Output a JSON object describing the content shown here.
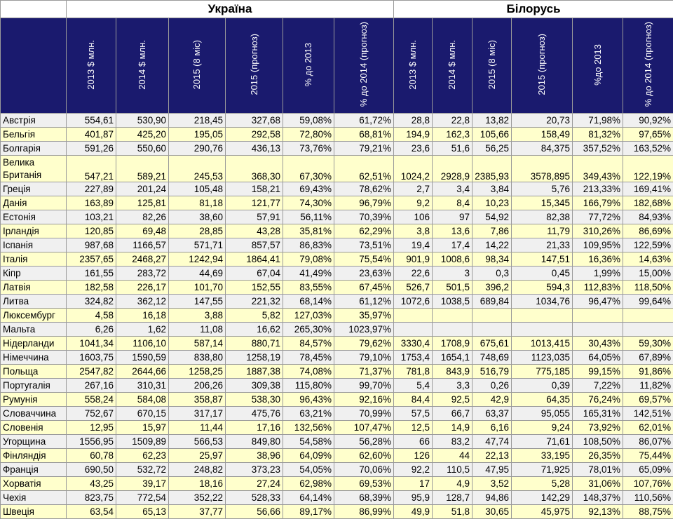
{
  "groups": {
    "ukraine": "Україна",
    "belarus": "Білорусь"
  },
  "columns": [
    "2013 $ млн.",
    "2014 $ млн.",
    "2015 (8 міс)",
    "2015 (прогноз)",
    "% до 2013",
    "% до 2014 (прогноз)",
    "2013 $ млн.",
    "2014 $ млн.",
    "2015 (8 міс)",
    "2015 (прогноз)",
    "%до 2013",
    "% до 2014 (прогноз)"
  ],
  "rows": [
    [
      "Австрія",
      "554,61",
      "530,90",
      "218,45",
      "327,68",
      "59,08%",
      "61,72%",
      "28,8",
      "22,8",
      "13,82",
      "20,73",
      "71,98%",
      "90,92%"
    ],
    [
      "Бельгія",
      "401,87",
      "425,20",
      "195,05",
      "292,58",
      "72,80%",
      "68,81%",
      "194,9",
      "162,3",
      "105,66",
      "158,49",
      "81,32%",
      "97,65%"
    ],
    [
      "Болгарія",
      "591,26",
      "550,60",
      "290,76",
      "436,13",
      "73,76%",
      "79,21%",
      "23,6",
      "51,6",
      "56,25",
      "84,375",
      "357,52%",
      "163,52%"
    ],
    [
      "Велика Британія",
      "547,21",
      "589,21",
      "245,53",
      "368,30",
      "67,30%",
      "62,51%",
      "1024,2",
      "2928,9",
      "2385,93",
      "3578,895",
      "349,43%",
      "122,19%"
    ],
    [
      "Греція",
      "227,89",
      "201,24",
      "105,48",
      "158,21",
      "69,43%",
      "78,62%",
      "2,7",
      "3,4",
      "3,84",
      "5,76",
      "213,33%",
      "169,41%"
    ],
    [
      "Данія",
      "163,89",
      "125,81",
      "81,18",
      "121,77",
      "74,30%",
      "96,79%",
      "9,2",
      "8,4",
      "10,23",
      "15,345",
      "166,79%",
      "182,68%"
    ],
    [
      "Естонія",
      "103,21",
      "82,26",
      "38,60",
      "57,91",
      "56,11%",
      "70,39%",
      "106",
      "97",
      "54,92",
      "82,38",
      "77,72%",
      "84,93%"
    ],
    [
      "Ірландія",
      "120,85",
      "69,48",
      "28,85",
      "43,28",
      "35,81%",
      "62,29%",
      "3,8",
      "13,6",
      "7,86",
      "11,79",
      "310,26%",
      "86,69%"
    ],
    [
      "Іспанія",
      "987,68",
      "1166,57",
      "571,71",
      "857,57",
      "86,83%",
      "73,51%",
      "19,4",
      "17,4",
      "14,22",
      "21,33",
      "109,95%",
      "122,59%"
    ],
    [
      "Італія",
      "2357,65",
      "2468,27",
      "1242,94",
      "1864,41",
      "79,08%",
      "75,54%",
      "901,9",
      "1008,6",
      "98,34",
      "147,51",
      "16,36%",
      "14,63%"
    ],
    [
      "Кіпр",
      "161,55",
      "283,72",
      "44,69",
      "67,04",
      "41,49%",
      "23,63%",
      "22,6",
      "3",
      "0,3",
      "0,45",
      "1,99%",
      "15,00%"
    ],
    [
      "Латвія",
      "182,58",
      "226,17",
      "101,70",
      "152,55",
      "83,55%",
      "67,45%",
      "526,7",
      "501,5",
      "396,2",
      "594,3",
      "112,83%",
      "118,50%"
    ],
    [
      "Литва",
      "324,82",
      "362,12",
      "147,55",
      "221,32",
      "68,14%",
      "61,12%",
      "1072,6",
      "1038,5",
      "689,84",
      "1034,76",
      "96,47%",
      "99,64%"
    ],
    [
      "Люксембург",
      "4,58",
      "16,18",
      "3,88",
      "5,82",
      "127,03%",
      "35,97%",
      "",
      "",
      "",
      "",
      "",
      ""
    ],
    [
      "Мальта",
      "6,26",
      "1,62",
      "11,08",
      "16,62",
      "265,30%",
      "1023,97%",
      "",
      "",
      "",
      "",
      "",
      ""
    ],
    [
      "Нідерланди",
      "1041,34",
      "1106,10",
      "587,14",
      "880,71",
      "84,57%",
      "79,62%",
      "3330,4",
      "1708,9",
      "675,61",
      "1013,415",
      "30,43%",
      "59,30%"
    ],
    [
      "Німеччина",
      "1603,75",
      "1590,59",
      "838,80",
      "1258,19",
      "78,45%",
      "79,10%",
      "1753,4",
      "1654,1",
      "748,69",
      "1123,035",
      "64,05%",
      "67,89%"
    ],
    [
      "Польща",
      "2547,82",
      "2644,66",
      "1258,25",
      "1887,38",
      "74,08%",
      "71,37%",
      "781,8",
      "843,9",
      "516,79",
      "775,185",
      "99,15%",
      "91,86%"
    ],
    [
      "Португалія",
      "267,16",
      "310,31",
      "206,26",
      "309,38",
      "115,80%",
      "99,70%",
      "5,4",
      "3,3",
      "0,26",
      "0,39",
      "7,22%",
      "11,82%"
    ],
    [
      "Румунія",
      "558,24",
      "584,08",
      "358,87",
      "538,30",
      "96,43%",
      "92,16%",
      "84,4",
      "92,5",
      "42,9",
      "64,35",
      "76,24%",
      "69,57%"
    ],
    [
      "Словаччина",
      "752,67",
      "670,15",
      "317,17",
      "475,76",
      "63,21%",
      "70,99%",
      "57,5",
      "66,7",
      "63,37",
      "95,055",
      "165,31%",
      "142,51%"
    ],
    [
      "Словенія",
      "12,95",
      "15,97",
      "11,44",
      "17,16",
      "132,56%",
      "107,47%",
      "12,5",
      "14,9",
      "6,16",
      "9,24",
      "73,92%",
      "62,01%"
    ],
    [
      "Угорщина",
      "1556,95",
      "1509,89",
      "566,53",
      "849,80",
      "54,58%",
      "56,28%",
      "66",
      "83,2",
      "47,74",
      "71,61",
      "108,50%",
      "86,07%"
    ],
    [
      "Фінляндія",
      "60,78",
      "62,23",
      "25,97",
      "38,96",
      "64,09%",
      "62,60%",
      "126",
      "44",
      "22,13",
      "33,195",
      "26,35%",
      "75,44%"
    ],
    [
      "Франція",
      "690,50",
      "532,72",
      "248,82",
      "373,23",
      "54,05%",
      "70,06%",
      "92,2",
      "110,5",
      "47,95",
      "71,925",
      "78,01%",
      "65,09%"
    ],
    [
      "Хорватія",
      "43,25",
      "39,17",
      "18,16",
      "27,24",
      "62,98%",
      "69,53%",
      "17",
      "4,9",
      "3,52",
      "5,28",
      "31,06%",
      "107,76%"
    ],
    [
      "Чехія",
      "823,75",
      "772,54",
      "352,22",
      "528,33",
      "64,14%",
      "68,39%",
      "95,9",
      "128,7",
      "94,86",
      "142,29",
      "148,37%",
      "110,56%"
    ],
    [
      "Швеція",
      "63,54",
      "65,13",
      "37,77",
      "56,66",
      "89,17%",
      "86,99%",
      "49,9",
      "51,8",
      "30,65",
      "45,975",
      "92,13%",
      "88,75%"
    ]
  ]
}
